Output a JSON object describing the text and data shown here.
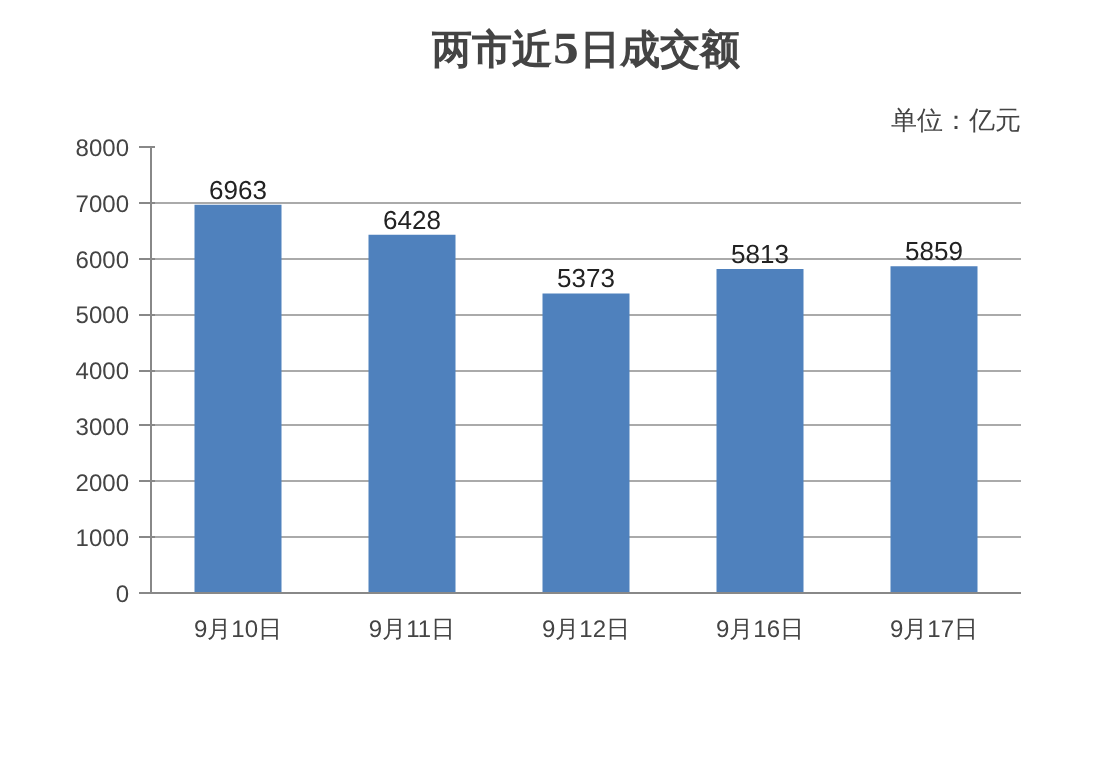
{
  "chart_data": {
    "type": "bar",
    "title": "两市近5日成交额",
    "annotations": [
      "单位：亿元"
    ],
    "categories": [
      "9月10日",
      "9月11日",
      "9月12日",
      "9月16日",
      "9月17日"
    ],
    "values": [
      6963,
      6428,
      5373,
      5813,
      5859
    ],
    "color": "#4f81bd",
    "ylim": [
      0,
      8000
    ],
    "yticks": [
      0,
      1000,
      2000,
      3000,
      4000,
      5000,
      6000,
      7000,
      8000
    ],
    "grid": "y",
    "data_labels": true
  }
}
